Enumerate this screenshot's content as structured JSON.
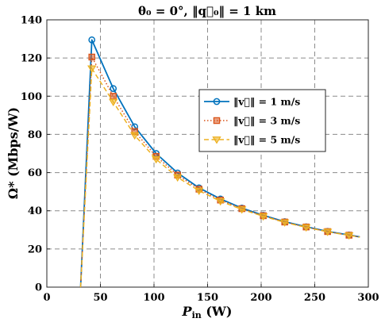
{
  "chart_data": {
    "type": "line",
    "title": "θ₀ = 0°, ‖q⃗₀‖ = 1 km",
    "xlabel": "P_in (W)",
    "xlabel_main": "P",
    "xlabel_sub": "in",
    "xlabel_unit": " (W)",
    "ylabel": "Ω* (Mbps/W)",
    "xlim": [
      0,
      300
    ],
    "ylim": [
      0,
      140
    ],
    "xticks": [
      0,
      50,
      100,
      150,
      200,
      250,
      300
    ],
    "yticks": [
      0,
      20,
      40,
      60,
      80,
      100,
      120,
      140
    ],
    "grid": true,
    "legend_position": "top-right",
    "series": [
      {
        "name": "‖v⃗‖ = 1 m/s",
        "color": "#0072BD",
        "line_style": "solid",
        "marker": "circle",
        "x": [
          31.5,
          42,
          62,
          82,
          102,
          122,
          142,
          162,
          182,
          202,
          222,
          242,
          262,
          282,
          292
        ],
        "y": [
          0,
          129.5,
          104,
          84,
          70,
          59.8,
          52,
          46.2,
          41.4,
          37.6,
          34.3,
          31.6,
          29.2,
          27.3,
          26.3
        ],
        "marker_x": [
          42,
          62,
          82,
          102,
          122,
          142,
          162,
          182,
          202,
          222,
          242,
          262,
          282
        ],
        "marker_y": [
          129.5,
          104,
          84,
          70,
          59.8,
          52,
          46.2,
          41.4,
          37.6,
          34.3,
          31.6,
          29.2,
          27.3
        ]
      },
      {
        "name": "‖v⃗‖ = 3 m/s",
        "color": "#D95319",
        "line_style": "dotted",
        "marker": "square",
        "x": [
          31.5,
          42,
          62,
          82,
          102,
          122,
          142,
          162,
          182,
          202,
          222,
          242,
          262,
          282,
          292
        ],
        "y": [
          0,
          120.5,
          100,
          81.5,
          68.5,
          58.7,
          51.3,
          45.6,
          41.1,
          37.4,
          34.1,
          31.5,
          29.1,
          27.2,
          26.3
        ],
        "marker_x": [
          42,
          62,
          82,
          102,
          122,
          142,
          162,
          182,
          202,
          222,
          242,
          262,
          282
        ],
        "marker_y": [
          120.5,
          100,
          81.5,
          68.5,
          58.7,
          51.3,
          45.6,
          41.1,
          37.4,
          34.1,
          31.5,
          29.1,
          27.2
        ]
      },
      {
        "name": "‖v⃗‖ = 5 m/s",
        "color": "#EDB120",
        "line_style": "dashed",
        "marker": "triangle-down",
        "x": [
          31.5,
          42,
          62,
          82,
          102,
          122,
          142,
          162,
          182,
          202,
          222,
          242,
          262,
          282,
          292
        ],
        "y": [
          0,
          114.5,
          97,
          79.5,
          67,
          57.5,
          50.5,
          45,
          40.7,
          37.1,
          33.9,
          31.3,
          29,
          27.1,
          26.2
        ],
        "marker_x": [
          42,
          62,
          82,
          102,
          122,
          142,
          162,
          182,
          202,
          222,
          242,
          262,
          282
        ],
        "marker_y": [
          114.5,
          97,
          79.5,
          67,
          57.5,
          50.5,
          45,
          40.7,
          37.1,
          33.9,
          31.3,
          29,
          27.1
        ]
      }
    ]
  }
}
